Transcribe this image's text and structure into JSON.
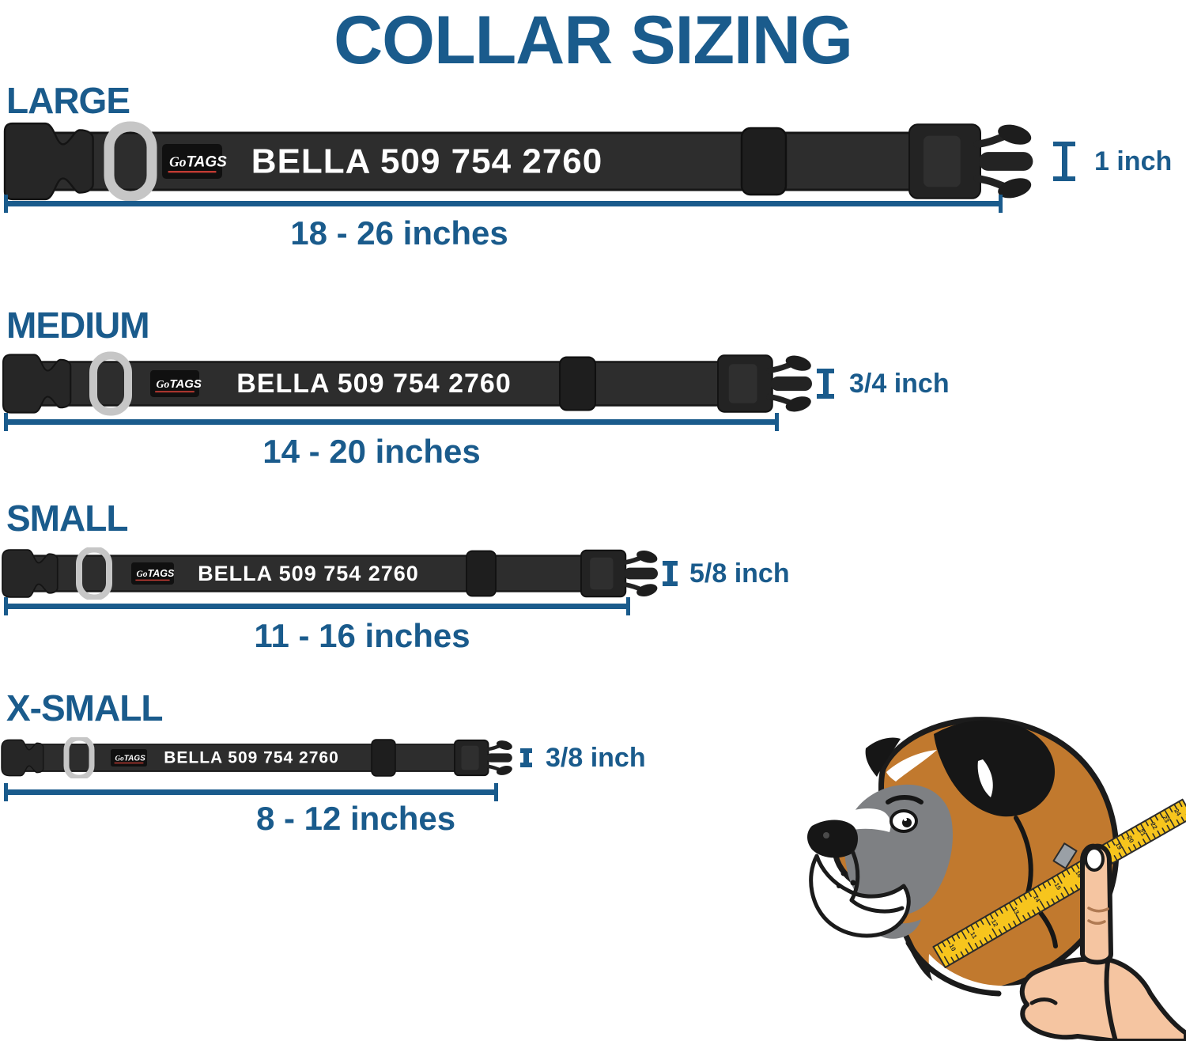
{
  "title": "COLLAR SIZING",
  "brand": {
    "go": "Go",
    "tags": "TAGS"
  },
  "collar_text": "BELLA 509 754 2760",
  "sizes": [
    {
      "label": "LARGE",
      "width": "1 inch",
      "range": "18 - 26 inches"
    },
    {
      "label": "MEDIUM",
      "width": "3/4 inch",
      "range": "14 - 20 inches"
    },
    {
      "label": "SMALL",
      "width": "5/8 inch",
      "range": "11 - 16 inches"
    },
    {
      "label": "X-SMALL",
      "width": "3/8 inch",
      "range": "8 - 12 inches"
    }
  ],
  "dog_illustration": {
    "tape_numbers_lower": [
      "10",
      "11",
      "12",
      "13",
      "14",
      "15",
      "16"
    ],
    "tape_numbers_upper": [
      "18",
      "19",
      "20",
      "21",
      "22",
      "23",
      "24"
    ]
  },
  "colors": {
    "accent_blue": "#1A5B8C",
    "collar_black": "#2B2B2B",
    "logo_red": "#C13B33",
    "dring_gray": "#C6C6C6",
    "tape_yellow": "#F7C51D",
    "dog_tan": "#C1792E",
    "dog_gray": "#7E8083",
    "hand_skin": "#F5C5A1"
  }
}
